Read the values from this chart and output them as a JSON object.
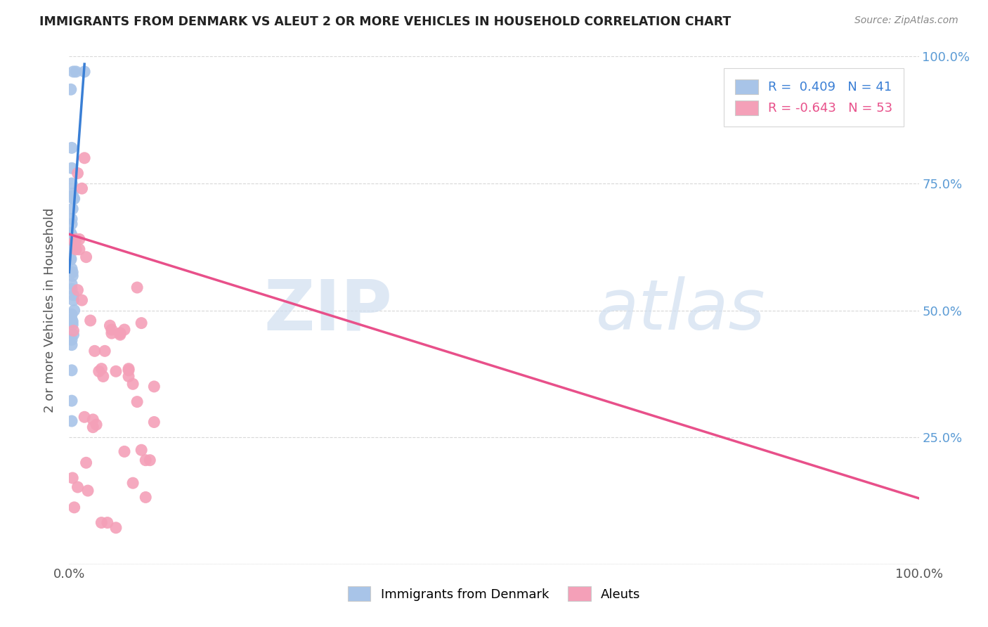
{
  "title": "IMMIGRANTS FROM DENMARK VS ALEUT 2 OR MORE VEHICLES IN HOUSEHOLD CORRELATION CHART",
  "source": "Source: ZipAtlas.com",
  "ylabel": "2 or more Vehicles in Household",
  "legend_blue_r": "R =  0.409",
  "legend_blue_n": "N = 41",
  "legend_pink_r": "R = -0.643",
  "legend_pink_n": "N = 53",
  "legend_blue_label": "Immigrants from Denmark",
  "legend_pink_label": "Aleuts",
  "blue_color": "#a8c4e8",
  "pink_color": "#f4a0b8",
  "blue_line_color": "#3a7fd5",
  "pink_line_color": "#e8508a",
  "watermark_zip": "ZIP",
  "watermark_atlas": "atlas",
  "blue_scatter_x": [
    0.002,
    0.008,
    0.005,
    0.003,
    0.003,
    0.003,
    0.004,
    0.004,
    0.005,
    0.006,
    0.004,
    0.003,
    0.003,
    0.002,
    0.002,
    0.003,
    0.003,
    0.003,
    0.003,
    0.003,
    0.002,
    0.002,
    0.003,
    0.004,
    0.004,
    0.003,
    0.003,
    0.005,
    0.005,
    0.006,
    0.018,
    0.003,
    0.003,
    0.004,
    0.005,
    0.003,
    0.003,
    0.003,
    0.003,
    0.003,
    0.004
  ],
  "blue_scatter_y": [
    0.935,
    0.97,
    0.97,
    0.82,
    0.78,
    0.75,
    0.73,
    0.725,
    0.72,
    0.72,
    0.7,
    0.68,
    0.67,
    0.652,
    0.65,
    0.648,
    0.645,
    0.642,
    0.638,
    0.62,
    0.602,
    0.6,
    0.582,
    0.575,
    0.568,
    0.552,
    0.542,
    0.53,
    0.52,
    0.5,
    0.97,
    0.492,
    0.482,
    0.472,
    0.452,
    0.442,
    0.432,
    0.382,
    0.322,
    0.282,
    0.478
  ],
  "pink_scatter_x": [
    0.004,
    0.018,
    0.01,
    0.07,
    0.06,
    0.08,
    0.09,
    0.095,
    0.1,
    0.075,
    0.085,
    0.065,
    0.07,
    0.06,
    0.055,
    0.05,
    0.048,
    0.042,
    0.038,
    0.032,
    0.028,
    0.022,
    0.018,
    0.015,
    0.012,
    0.01,
    0.008,
    0.006,
    0.005,
    0.008,
    0.012,
    0.015,
    0.02,
    0.025,
    0.03,
    0.035,
    0.04,
    0.05,
    0.06,
    0.07,
    0.08,
    0.09,
    0.1,
    0.085,
    0.075,
    0.065,
    0.055,
    0.045,
    0.038,
    0.028,
    0.02,
    0.01,
    0.006
  ],
  "pink_scatter_y": [
    0.17,
    0.8,
    0.77,
    0.37,
    0.455,
    0.545,
    0.205,
    0.205,
    0.35,
    0.355,
    0.225,
    0.222,
    0.385,
    0.455,
    0.38,
    0.455,
    0.47,
    0.42,
    0.385,
    0.275,
    0.285,
    0.145,
    0.29,
    0.52,
    0.62,
    0.54,
    0.62,
    0.635,
    0.46,
    0.64,
    0.64,
    0.74,
    0.605,
    0.48,
    0.42,
    0.38,
    0.37,
    0.462,
    0.452,
    0.382,
    0.32,
    0.132,
    0.28,
    0.475,
    0.16,
    0.462,
    0.072,
    0.082,
    0.082,
    0.27,
    0.2,
    0.152,
    0.112
  ],
  "blue_line_x0": 0.0,
  "blue_line_x1": 0.018,
  "blue_line_y0": 0.575,
  "blue_line_y1": 0.985,
  "pink_line_x0": 0.0,
  "pink_line_x1": 1.0,
  "pink_line_y0": 0.65,
  "pink_line_y1": 0.13,
  "xmin": 0.0,
  "xmax": 1.0,
  "ymin": 0.0,
  "ymax": 1.0,
  "background_color": "#ffffff",
  "grid_color": "#d8d8d8",
  "right_axis_color": "#5b9bd5"
}
